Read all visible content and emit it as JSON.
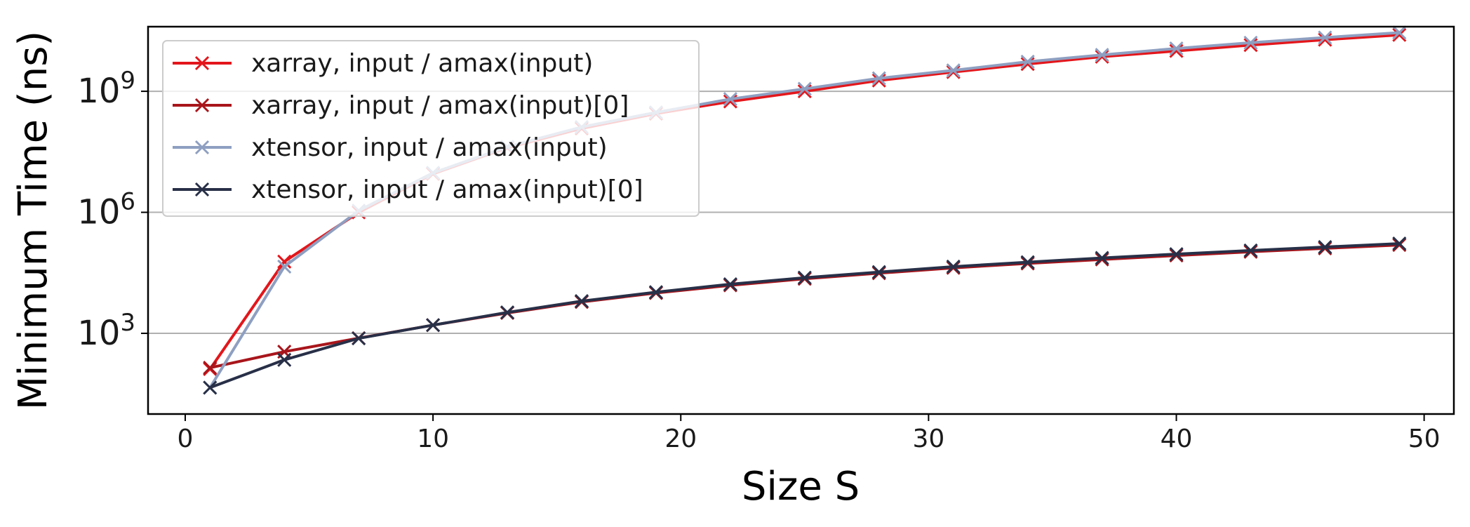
{
  "chart_data": {
    "type": "line",
    "title": "",
    "xlabel": "Size S",
    "ylabel": "Minimum Time (ns)",
    "yscale": "log",
    "xlim": [
      -1.5,
      51.2
    ],
    "ylim": [
      10,
      40000000000
    ],
    "x_ticks": [
      0,
      10,
      20,
      30,
      40,
      50
    ],
    "x_tick_labels": [
      "0",
      "10",
      "20",
      "30",
      "40",
      "50"
    ],
    "y_ticks": [
      1000,
      1000000,
      1000000000
    ],
    "y_tick_labels": [
      {
        "base": "10",
        "exp": "3"
      },
      {
        "base": "10",
        "exp": "6"
      },
      {
        "base": "10",
        "exp": "9"
      }
    ],
    "grid": "horizontal major lines",
    "legend_position": "upper-left",
    "marker": "x",
    "x": [
      1,
      4,
      7,
      10,
      13,
      16,
      19,
      22,
      25,
      28,
      31,
      34,
      37,
      40,
      43,
      46,
      49
    ],
    "series": [
      {
        "name": "xarray, input / amax(input)",
        "color": "#e3161b",
        "values": [
          130,
          60000,
          1000000,
          9000000,
          40000000,
          120000000,
          280000000,
          560000000,
          1000000000,
          1850000000,
          3000000000,
          4750000000,
          7200000000,
          10000000000,
          14000000000,
          19000000000,
          25000000000
        ]
      },
      {
        "name": "xarray, input / amax(input)[0]",
        "color": "#a8151b",
        "values": [
          140,
          350,
          760,
          1600,
          3200,
          6000,
          10000,
          15500,
          22500,
          31000,
          42000,
          54000,
          68000,
          85000,
          105000,
          128000,
          155000
        ]
      },
      {
        "name": "xtensor, input / amax(input)",
        "color": "#8e9fc1",
        "values": [
          45,
          45000,
          1100000,
          9500000,
          42000000,
          130000000,
          300000000,
          640000000,
          1150000000,
          2100000000,
          3300000000,
          5400000000,
          8000000000,
          11500000000,
          16000000000,
          21500000000,
          28500000000
        ]
      },
      {
        "name": "xtensor, input / amax(input)[0]",
        "color": "#283048",
        "values": [
          45,
          220,
          750,
          1600,
          3300,
          6300,
          10500,
          16500,
          24000,
          33000,
          45000,
          58000,
          74000,
          92000,
          113000,
          138000,
          168000
        ]
      }
    ]
  }
}
